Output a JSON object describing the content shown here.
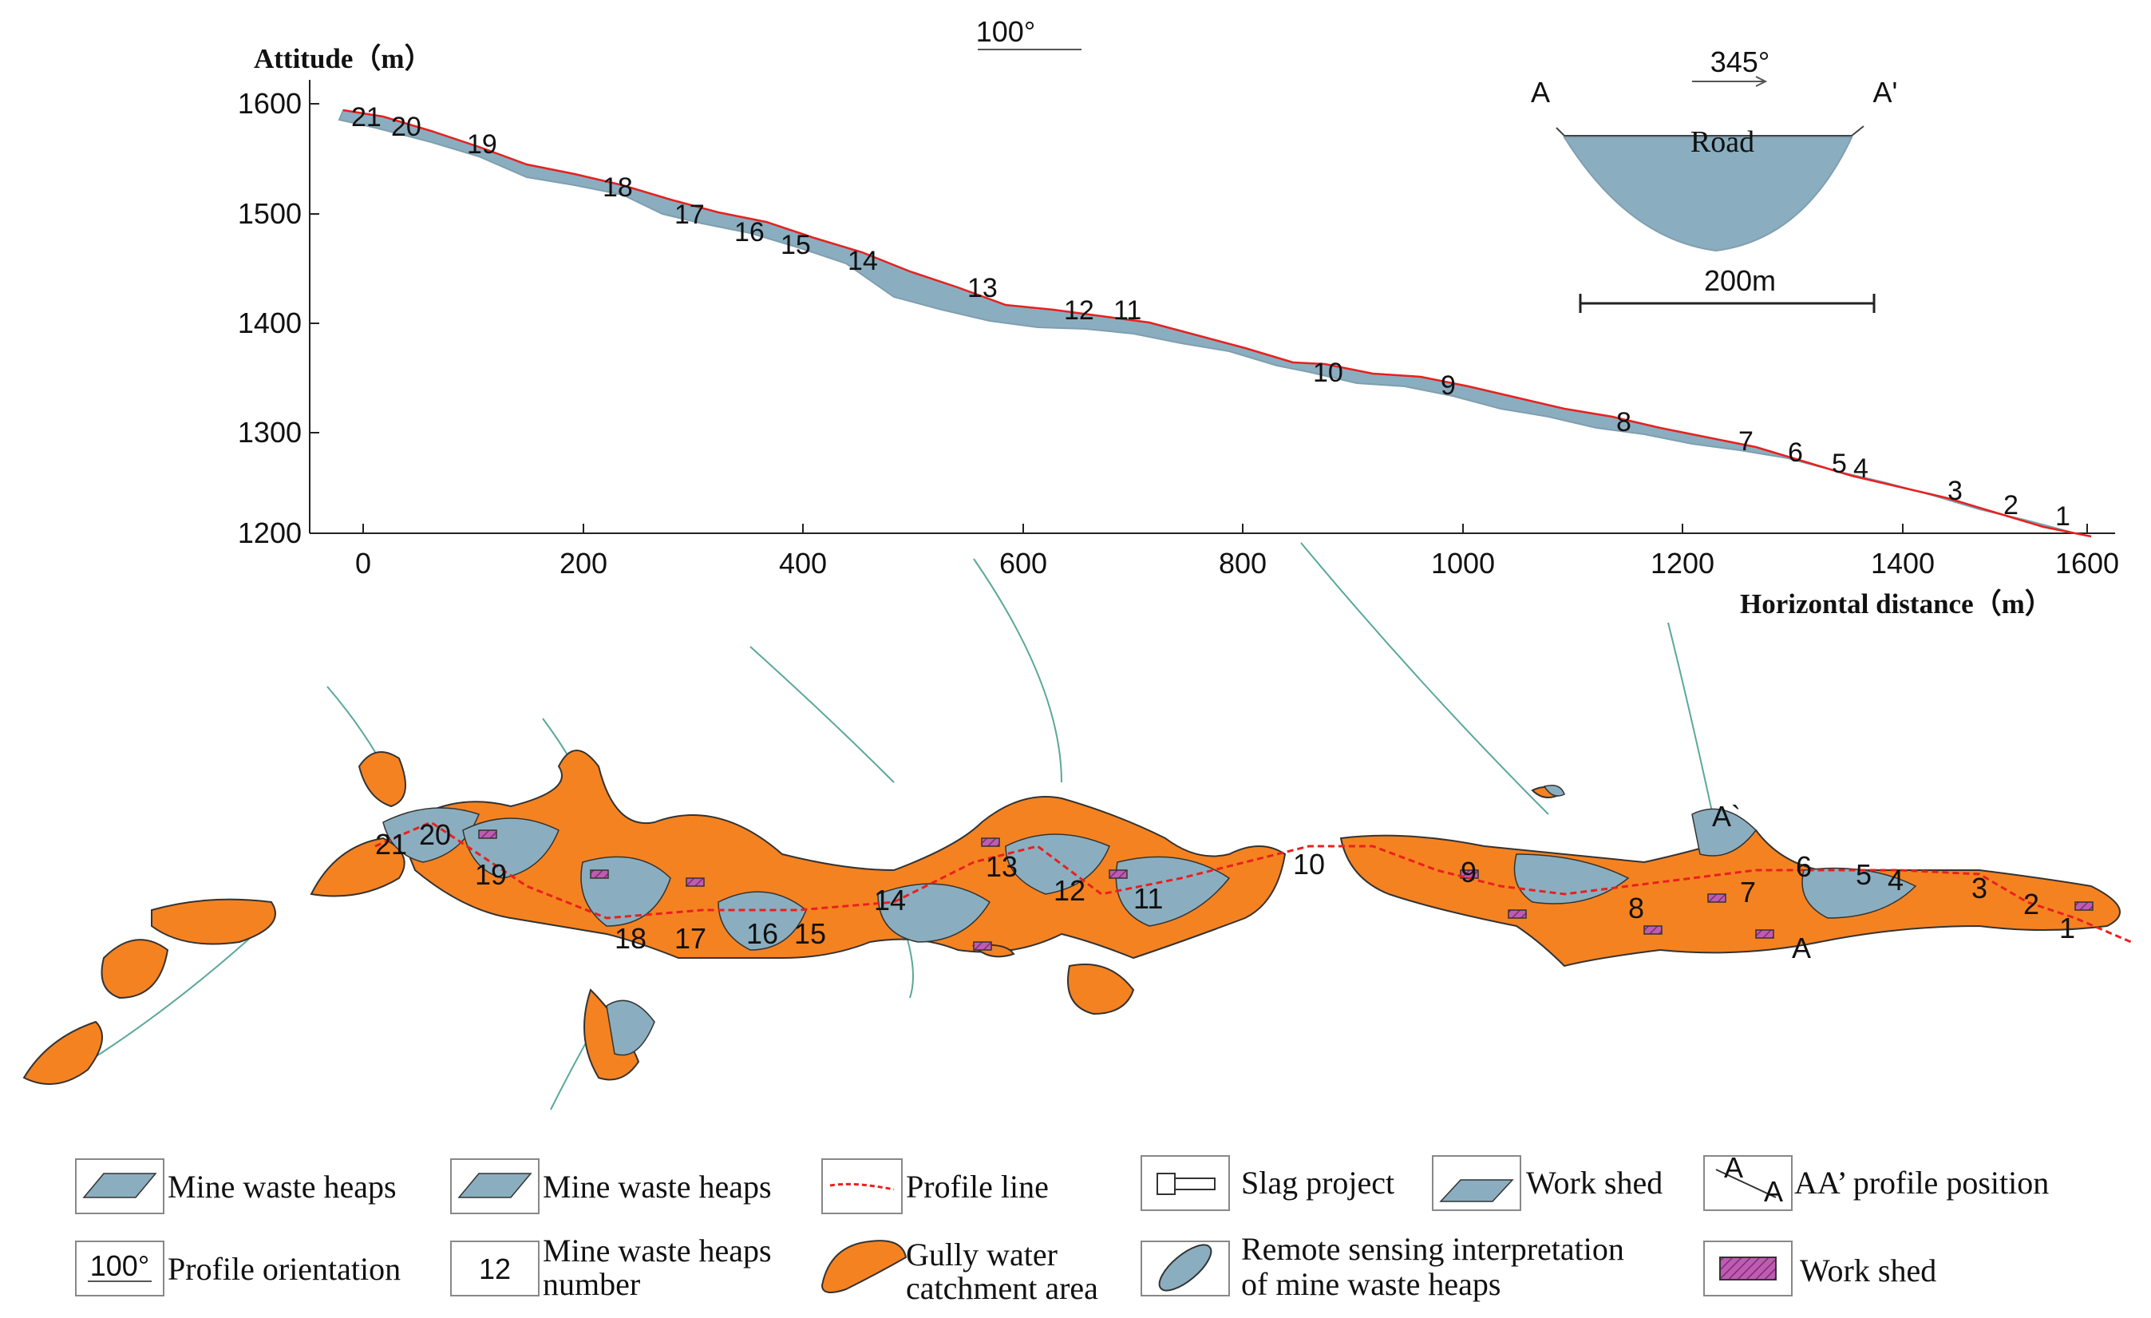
{
  "profile": {
    "orientation_label": "100°",
    "y_axis_title": "Attitude（m）",
    "x_axis_title": "Horizontal distance（m）",
    "y_ticks": [
      "1600",
      "1500",
      "1400",
      "1300",
      "1200"
    ],
    "x_ticks": [
      "0",
      "200",
      "400",
      "600",
      "800",
      "1000",
      "1200",
      "1400",
      "1600"
    ],
    "heap_numbers": [
      "21",
      "20",
      "19",
      "18",
      "17",
      "16",
      "15",
      "14",
      "13",
      "12",
      "11",
      "10",
      "9",
      "8",
      "7",
      "6",
      "5",
      "4",
      "3",
      "2",
      "1"
    ]
  },
  "inset": {
    "left_label": "A",
    "right_label": "A'",
    "orientation_label": "345°",
    "road_label": "Road",
    "scale_label": "200m"
  },
  "map": {
    "heap_numbers": [
      "21",
      "20",
      "19",
      "18",
      "17",
      "16",
      "15",
      "14",
      "13",
      "12",
      "11",
      "10",
      "9",
      "8",
      "7",
      "6",
      "5",
      "4",
      "3",
      "2",
      "1"
    ],
    "a_label": "A",
    "a_prime_label": "A`"
  },
  "legend": {
    "items": [
      {
        "label": "Mine waste heaps"
      },
      {
        "label": "Mine waste heaps"
      },
      {
        "label": "Profile line"
      },
      {
        "label": "Slag project"
      },
      {
        "label": "Work shed"
      },
      {
        "label": "AA’  profile position"
      },
      {
        "label": "Profile orientation"
      },
      {
        "label_line1": "Mine waste heaps",
        "label_line2": "number",
        "icon_text": "12"
      },
      {
        "label_line1": "Gully water",
        "label_line2": "catchment area"
      },
      {
        "label_line1": "Remote sensing interpretation",
        "label_line2": "of mine  waste heaps"
      },
      {
        "label": "Work shed"
      }
    ],
    "icon_profile_orientation": "100°",
    "icon_aa_a": "A",
    "icon_aa_aprime": "A"
  },
  "colors": {
    "heap_fill": "#8aaebf",
    "gully_fill": "#f58220",
    "profile_line": "#e8201f",
    "shed_fill": "#c05bb3",
    "stream": "#5aa89a"
  }
}
